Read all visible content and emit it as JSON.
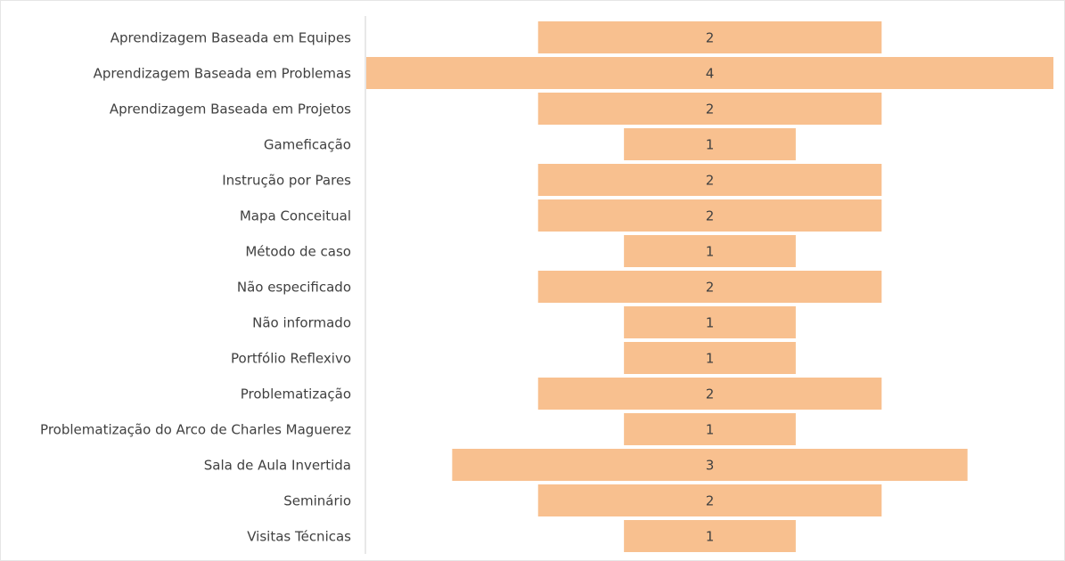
{
  "chart_data": {
    "type": "funnel",
    "categories": [
      "Aprendizagem Baseada em Equipes",
      "Aprendizagem Baseada em Problemas",
      "Aprendizagem Baseada em Projetos",
      "Gameficação",
      "Instrução por Pares",
      "Mapa Conceitual",
      "Método de caso",
      "Não especificado",
      "Não informado",
      "Portfólio Reflexivo",
      "Problematização",
      "Problematização do Arco de Charles Maguerez",
      "Sala de Aula Invertida",
      "Seminário",
      "Visitas Técnicas"
    ],
    "values": [
      2,
      4,
      2,
      1,
      2,
      2,
      1,
      2,
      1,
      1,
      2,
      1,
      3,
      2,
      1
    ],
    "color": "#f8c08f"
  }
}
